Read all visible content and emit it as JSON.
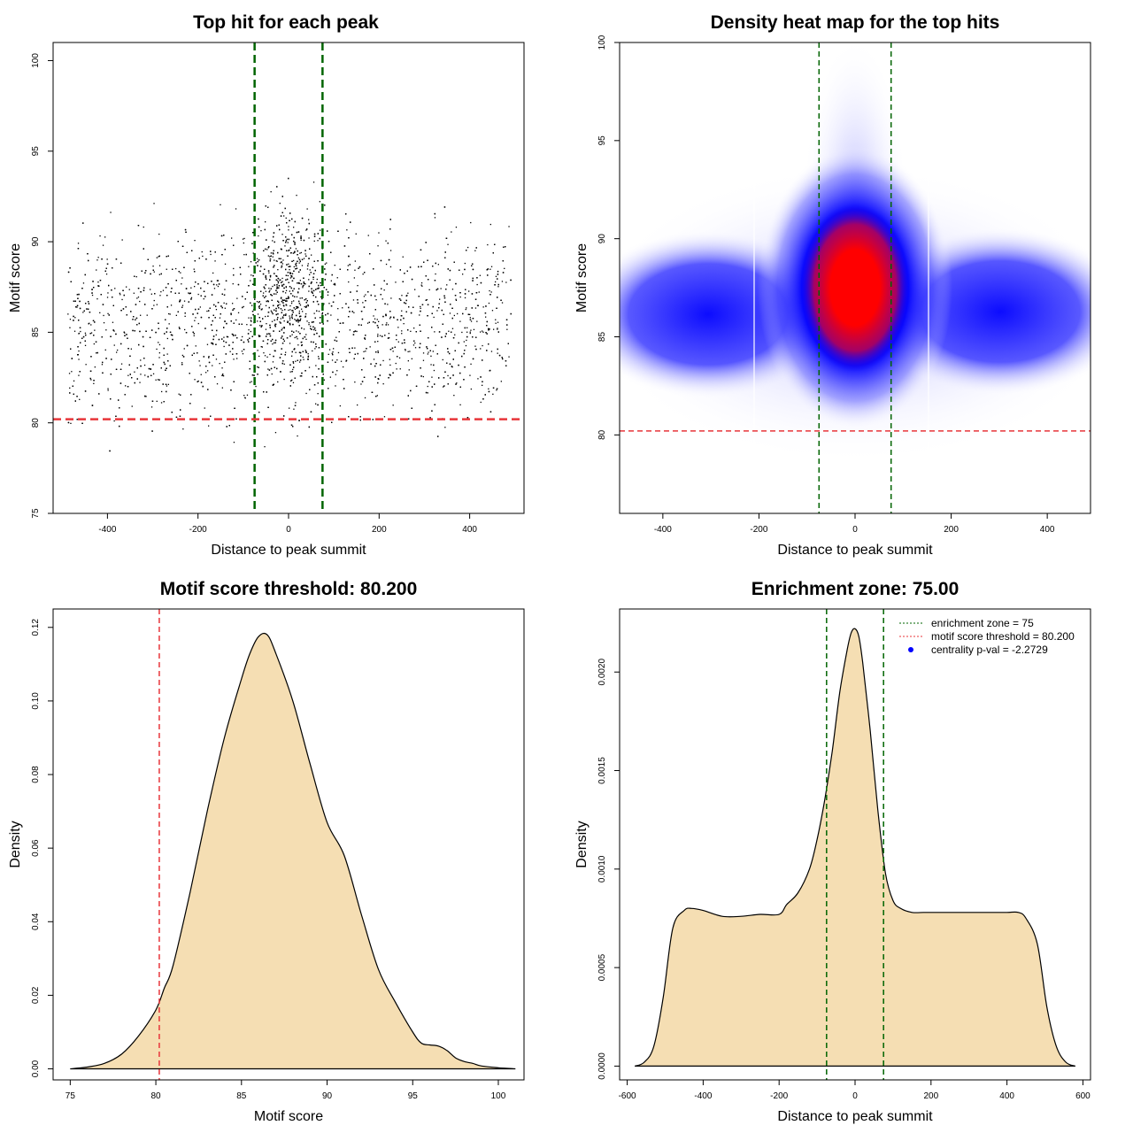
{
  "colors": {
    "enrichment_line": "#006400",
    "threshold_line": "#e8353a",
    "density_fill": "#f5deb3",
    "heat_high": "#ff0000",
    "heat_mid": "#0000ff",
    "pval_point": "#0000ff"
  },
  "chart_data": [
    {
      "type": "scatter",
      "title": "Top hit for each peak",
      "xlabel": "Distance to peak summit",
      "ylabel": "Motif score",
      "xlim": [
        -520,
        520
      ],
      "ylim": [
        75,
        101
      ],
      "xticks": [
        -400,
        -200,
        0,
        200,
        400
      ],
      "yticks": [
        75,
        80,
        85,
        90,
        95,
        100
      ],
      "x_range": [
        -490,
        490
      ],
      "enrichment_zone": [
        -75,
        75
      ],
      "threshold": 80.2,
      "dense_band": [
        82,
        89
      ]
    },
    {
      "type": "heatmap",
      "title": "Density heat map for the top hits",
      "xlabel": "Distance to peak summit",
      "ylabel": "Motif score",
      "xlim": [
        -490,
        490
      ],
      "ylim": [
        76,
        100
      ],
      "xticks": [
        -400,
        -200,
        0,
        200,
        400
      ],
      "yticks": [
        80,
        85,
        90,
        95,
        100
      ],
      "enrichment_zone": [
        -75,
        75
      ],
      "threshold": 80.2,
      "hotspot": {
        "x": 0,
        "y": 87.5
      }
    },
    {
      "type": "area",
      "title": "Motif score threshold: 80.200",
      "xlabel": "Motif score",
      "ylabel": "Density",
      "xlim": [
        74,
        101.5
      ],
      "ylim": [
        -0.003,
        0.125
      ],
      "xticks": [
        75,
        80,
        85,
        90,
        95,
        100
      ],
      "yticks": [
        0.0,
        0.02,
        0.04,
        0.06,
        0.08,
        0.1,
        0.12
      ],
      "ytick_labels": [
        "0.00",
        "0.02",
        "0.04",
        "0.06",
        "0.08",
        "0.10",
        "0.12"
      ],
      "threshold": 80.2,
      "x": [
        75,
        76,
        77,
        78,
        79,
        80,
        80.5,
        81,
        82,
        83,
        84,
        85,
        85.5,
        86,
        86.5,
        87,
        88,
        89,
        90,
        91,
        92,
        93,
        94,
        95,
        95.5,
        96,
        96.5,
        97,
        97.5,
        98,
        98.5,
        99,
        100,
        101
      ],
      "y": [
        0,
        0.0005,
        0.0015,
        0.004,
        0.009,
        0.016,
        0.022,
        0.028,
        0.048,
        0.07,
        0.09,
        0.106,
        0.113,
        0.1175,
        0.118,
        0.113,
        0.1,
        0.083,
        0.067,
        0.058,
        0.042,
        0.027,
        0.018,
        0.01,
        0.007,
        0.0065,
        0.0062,
        0.005,
        0.003,
        0.002,
        0.0015,
        0.0008,
        0.0003,
        0
      ]
    },
    {
      "type": "area",
      "title": "Enrichment zone: 75.00",
      "xlabel": "Distance to peak summit",
      "ylabel": "Density",
      "xlim": [
        -620,
        620
      ],
      "ylim": [
        -7e-05,
        0.00232
      ],
      "xticks": [
        -600,
        -400,
        -200,
        0,
        200,
        400,
        600
      ],
      "yticks": [
        0.0,
        0.0005,
        0.001,
        0.0015,
        0.002
      ],
      "ytick_labels": [
        "0.0000",
        "0.0005",
        "0.0010",
        "0.0015",
        "0.0020"
      ],
      "enrichment_zone": [
        -75,
        75
      ],
      "x": [
        -580,
        -555,
        -530,
        -505,
        -480,
        -450,
        -430,
        -400,
        -350,
        -300,
        -250,
        -200,
        -180,
        -150,
        -120,
        -100,
        -80,
        -60,
        -40,
        -20,
        -10,
        0,
        10,
        20,
        40,
        60,
        80,
        100,
        120,
        150,
        180,
        200,
        250,
        300,
        350,
        400,
        430,
        450,
        480,
        505,
        530,
        555,
        580
      ],
      "y": [
        0,
        2e-05,
        0.0001,
        0.00035,
        0.0007,
        0.00079,
        0.0008,
        0.00079,
        0.00076,
        0.00076,
        0.00077,
        0.00077,
        0.00082,
        0.00088,
        0.001,
        0.00115,
        0.00135,
        0.0016,
        0.0019,
        0.00212,
        0.0022,
        0.00222,
        0.00218,
        0.00205,
        0.0017,
        0.0013,
        0.00098,
        0.00084,
        0.0008,
        0.00078,
        0.00078,
        0.00078,
        0.00078,
        0.00078,
        0.00078,
        0.00078,
        0.00078,
        0.00075,
        0.00062,
        0.0003,
        0.0001,
        2e-05,
        0
      ]
    }
  ],
  "legend": {
    "enrichment_zone": "enrichment zone = 75",
    "motif_threshold": "motif score threshold = 80.200",
    "pval": "centrality p-val = -2.2729"
  }
}
